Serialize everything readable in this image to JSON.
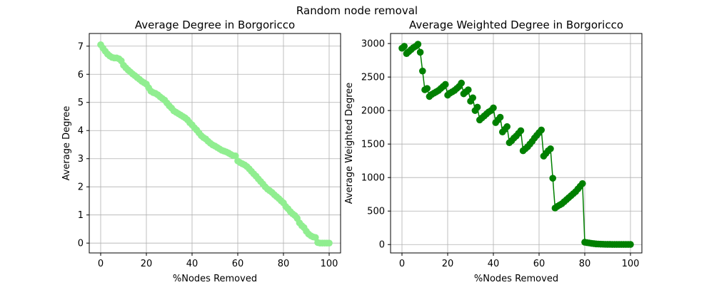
{
  "suptitle": "Random node removal",
  "chart_data": [
    {
      "type": "line",
      "title": "Average Degree in Borgoricco",
      "xlabel": "%Nodes Removed",
      "ylabel": "Average Degree",
      "xlim": [
        -5,
        105
      ],
      "ylim": [
        -0.35,
        7.45
      ],
      "xticks": [
        0,
        20,
        40,
        60,
        80,
        100
      ],
      "yticks": [
        0,
        1,
        2,
        3,
        4,
        5,
        6,
        7
      ],
      "grid": true,
      "color": "#90ee90",
      "marker": "circle",
      "x": [
        0,
        1,
        2,
        3,
        4,
        5,
        6,
        7,
        8,
        9,
        10,
        11,
        12,
        13,
        14,
        15,
        16,
        17,
        18,
        19,
        20,
        21,
        22,
        23,
        24,
        25,
        26,
        27,
        28,
        29,
        30,
        31,
        32,
        33,
        34,
        35,
        36,
        37,
        38,
        39,
        40,
        41,
        42,
        43,
        44,
        45,
        46,
        47,
        48,
        49,
        50,
        51,
        52,
        53,
        54,
        55,
        56,
        57,
        58,
        59,
        60,
        61,
        62,
        63,
        64,
        65,
        66,
        67,
        68,
        69,
        70,
        71,
        72,
        73,
        74,
        75,
        76,
        77,
        78,
        79,
        80,
        81,
        82,
        83,
        84,
        85,
        86,
        87,
        88,
        89,
        90,
        91,
        92,
        93,
        94,
        95,
        96,
        97,
        98,
        99,
        100
      ],
      "y": [
        7.05,
        6.93,
        6.82,
        6.72,
        6.65,
        6.6,
        6.58,
        6.58,
        6.55,
        6.48,
        6.32,
        6.23,
        6.15,
        6.08,
        6.01,
        5.95,
        5.88,
        5.82,
        5.75,
        5.7,
        5.65,
        5.52,
        5.4,
        5.35,
        5.32,
        5.27,
        5.2,
        5.14,
        5.08,
        4.98,
        4.88,
        4.8,
        4.7,
        4.65,
        4.6,
        4.55,
        4.5,
        4.45,
        4.38,
        4.28,
        4.2,
        4.1,
        4.02,
        3.92,
        3.82,
        3.75,
        3.7,
        3.62,
        3.55,
        3.49,
        3.45,
        3.4,
        3.35,
        3.3,
        3.27,
        3.24,
        3.2,
        3.15,
        3.11,
        3.1,
        2.92,
        2.86,
        2.82,
        2.78,
        2.72,
        2.64,
        2.55,
        2.46,
        2.38,
        2.28,
        2.19,
        2.1,
        2.0,
        1.92,
        1.86,
        1.8,
        1.72,
        1.65,
        1.58,
        1.5,
        1.43,
        1.3,
        1.22,
        1.12,
        1.04,
        0.98,
        0.88,
        0.72,
        0.62,
        0.55,
        0.42,
        0.32,
        0.26,
        0.22,
        0.2,
        0.02,
        0.0,
        0.0,
        0.0,
        0.0,
        0.0
      ]
    },
    {
      "type": "line",
      "title": "Average Weighted Degree in Borgoricco",
      "xlabel": "%Nodes Removed",
      "ylabel": "Average Weighted Degree",
      "xlim": [
        -5,
        105
      ],
      "ylim": [
        -125,
        3150
      ],
      "xticks": [
        0,
        20,
        40,
        60,
        80,
        100
      ],
      "yticks": [
        0,
        500,
        1000,
        1500,
        2000,
        2500,
        3000
      ],
      "grid": true,
      "color": "#008000",
      "marker": "circle",
      "x": [
        0,
        1,
        2,
        3,
        4,
        5,
        6,
        7,
        8,
        9,
        10,
        11,
        12,
        13,
        14,
        15,
        16,
        17,
        18,
        19,
        20,
        21,
        22,
        23,
        24,
        25,
        26,
        27,
        28,
        29,
        30,
        31,
        32,
        33,
        34,
        35,
        36,
        37,
        38,
        39,
        40,
        41,
        42,
        43,
        44,
        45,
        46,
        47,
        48,
        49,
        50,
        51,
        52,
        53,
        54,
        55,
        56,
        57,
        58,
        59,
        60,
        61,
        62,
        63,
        64,
        65,
        66,
        67,
        68,
        69,
        70,
        71,
        72,
        73,
        74,
        75,
        76,
        77,
        78,
        79,
        80,
        81,
        82,
        83,
        84,
        85,
        86,
        87,
        88,
        89,
        90,
        91,
        92,
        93,
        94,
        95,
        96,
        97,
        98,
        99,
        100
      ],
      "y": [
        2930,
        2960,
        2850,
        2880,
        2910,
        2940,
        2960,
        2990,
        2870,
        2590,
        2310,
        2330,
        2210,
        2240,
        2260,
        2280,
        2300,
        2330,
        2360,
        2390,
        2230,
        2260,
        2280,
        2300,
        2330,
        2360,
        2410,
        2250,
        2280,
        2310,
        2140,
        2190,
        2000,
        2050,
        1860,
        1890,
        1920,
        1950,
        1980,
        2000,
        2040,
        1820,
        1860,
        1900,
        1680,
        1720,
        1760,
        1520,
        1550,
        1590,
        1620,
        1660,
        1700,
        1400,
        1430,
        1460,
        1500,
        1540,
        1590,
        1630,
        1670,
        1710,
        1320,
        1360,
        1400,
        1430,
        990,
        545,
        570,
        590,
        610,
        640,
        670,
        700,
        730,
        760,
        790,
        830,
        870,
        910,
        35,
        28,
        24,
        18,
        14,
        10,
        8,
        6,
        5,
        4,
        3,
        3,
        2,
        2,
        2,
        2,
        2,
        2,
        2,
        2,
        2
      ]
    }
  ]
}
